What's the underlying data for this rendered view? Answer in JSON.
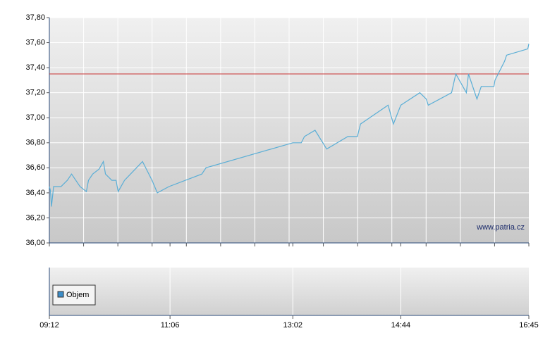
{
  "chart_data": [
    {
      "type": "line",
      "x": [
        "09:12",
        "09:13",
        "09:14",
        "09:16",
        "09:23",
        "09:29",
        "09:33",
        "09:37",
        "09:41",
        "09:47",
        "09:49",
        "09:53",
        "09:59",
        "10:03",
        "10:05",
        "10:11",
        "10:15",
        "10:17",
        "10:23",
        "10:40",
        "10:49",
        "10:54",
        "11:05",
        "11:36",
        "11:40",
        "13:02",
        "13:10",
        "13:13",
        "13:23",
        "13:34",
        "13:54",
        "14:03",
        "14:06",
        "14:32",
        "14:37",
        "14:44",
        "15:02",
        "15:08",
        "15:10",
        "15:32",
        "15:36",
        "15:46",
        "15:48",
        "15:52",
        "15:56",
        "16:00",
        "16:12",
        "16:13",
        "16:22",
        "16:24",
        "16:44",
        "16:45"
      ],
      "values": [
        36.45,
        36.42,
        36.29,
        36.45,
        36.45,
        36.5,
        36.55,
        36.5,
        36.45,
        36.41,
        36.5,
        36.55,
        36.59,
        36.65,
        36.55,
        36.5,
        36.5,
        36.41,
        36.5,
        36.65,
        36.5,
        36.4,
        36.45,
        36.55,
        36.6,
        36.8,
        36.8,
        36.85,
        36.9,
        36.75,
        36.85,
        36.85,
        36.95,
        37.1,
        36.95,
        37.1,
        37.2,
        37.15,
        37.1,
        37.2,
        37.35,
        37.2,
        37.35,
        37.25,
        37.15,
        37.25,
        37.25,
        37.3,
        37.45,
        37.5,
        37.55,
        37.59
      ],
      "color": "#5aaed6",
      "reference_line": 37.35,
      "reference_color": "#c83232",
      "ylim": [
        36,
        37.8
      ],
      "yticks": [
        {
          "value": 36,
          "label": "36,00"
        },
        {
          "value": 36.2,
          "label": "36,20"
        },
        {
          "value": 36.4,
          "label": "36,40"
        },
        {
          "value": 36.6,
          "label": "36,60"
        },
        {
          "value": 36.8,
          "label": "36,80"
        },
        {
          "value": 37,
          "label": "37,00"
        },
        {
          "value": 37.2,
          "label": "37,20"
        },
        {
          "value": 37.4,
          "label": "37,40"
        },
        {
          "value": 37.6,
          "label": "37,60"
        },
        {
          "value": 37.8,
          "label": "37,80"
        }
      ],
      "xlim": [
        "09:12",
        "16:45"
      ],
      "xticks": [
        "09:12",
        "11:06",
        "13:02",
        "14:44",
        "16:45"
      ],
      "grid": true,
      "watermark": "www.patria.cz"
    },
    {
      "type": "bar",
      "series": [
        {
          "name": "Objem",
          "color": "#3c8dc8",
          "values": []
        }
      ],
      "grid": true
    }
  ]
}
